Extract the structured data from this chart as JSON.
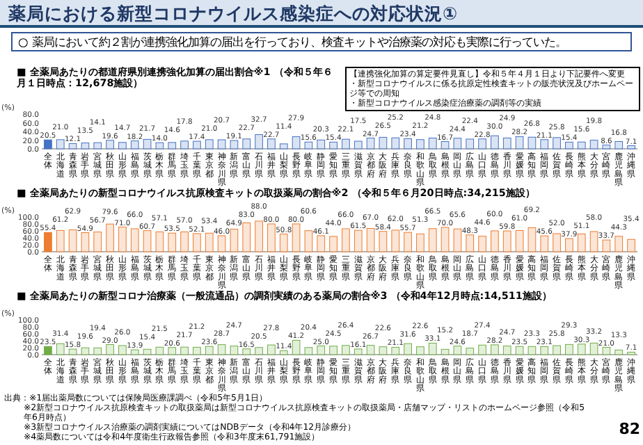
{
  "chart_data": [
    {
      "type": "other",
      "title": "薬局における新型コロナウイルス感染症への対応状況①",
      "subtitle": "○ 薬局において約２割が連携強化加算の届出を行っており、検査キットや治療薬の対応も実際に行っていた。",
      "annotations": [
        "出典：※1届出薬局数については保険局医療課調べ（令和5年5月1日）",
        "※2新型コロナウイルス抗原検査キットの取扱薬局は新型コロナウイルス抗原検査キットの取扱薬局・店舗マップ・リストのホームページ参照（令和5年6月時点）",
        "※3新型コロナウイルス治療薬の調剤実績についてはNDBデータ（令和4年12月診療分）",
        "※4薬局数については令和4年度衛生行政報告参照（令和3年度末61,791施設）",
        "82"
      ]
    },
    {
      "type": "bar",
      "title": "■ 全薬局あたりの都道府県別連携強化加算の届出割合※1 （令和５年６月１日時点：12,678施設）",
      "ylabel": "(%)",
      "annotations": [
        "【連携強化加算の算定要件見直し】令和５年４月１日より下記要件へ変更",
        "・新型コロナウイルスに係る抗原定性検査キットの販売状況及びホームページ等での周知",
        "・新型コロナウイルス感染症治療薬の調剤等の実績"
      ],
      "categories": [
        "全体",
        "北海道",
        "青森県",
        "岩手県",
        "宮城県",
        "秋田県",
        "山形県",
        "福島県",
        "茨城県",
        "栃木県",
        "群馬県",
        "埼玉県",
        "千葉県",
        "東京都",
        "神奈川県",
        "新潟県",
        "富山県",
        "石川県",
        "福井県",
        "山梨県",
        "長野県",
        "岐阜県",
        "静岡県",
        "愛知県",
        "三重県",
        "滋賀県",
        "京都府",
        "大阪府",
        "兵庫県",
        "奈良県",
        "和歌山県",
        "鳥取県",
        "島根県",
        "岡山県",
        "広島県",
        "山口県",
        "徳島県",
        "香川県",
        "愛媛県",
        "高知県",
        "福岡県",
        "佐賀県",
        "長崎県",
        "熊本県",
        "大分県",
        "宮崎県",
        "鹿児島県",
        "沖縄県"
      ],
      "values": [
        20.5,
        21.0,
        12.1,
        13.5,
        14.1,
        19.6,
        14.7,
        18.2,
        21.7,
        14.0,
        14.6,
        17.8,
        17.4,
        21.0,
        20.7,
        19.1,
        22.7,
        32.7,
        22.7,
        11.4,
        27.9,
        15.6,
        20.3,
        15.4,
        22.1,
        17.5,
        24.7,
        26.5,
        25.2,
        23.4,
        21.2,
        24.8,
        16.7,
        24.4,
        22.4,
        22.8,
        30.0,
        24.9,
        28.2,
        26.8,
        21.1,
        25.8,
        15.4,
        15.6,
        19.8,
        8.6,
        16.8,
        7.1
      ],
      "colors": [
        "#4472c4",
        "#dae3f3",
        "#dae3f3",
        "#dae3f3",
        "#dae3f3",
        "#dae3f3",
        "#dae3f3",
        "#dae3f3",
        "#dae3f3",
        "#dae3f3",
        "#dae3f3",
        "#dae3f3",
        "#dae3f3",
        "#dae3f3",
        "#dae3f3",
        "#dae3f3",
        "#dae3f3",
        "#dae3f3",
        "#dae3f3",
        "#dae3f3",
        "#dae3f3",
        "#dae3f3",
        "#dae3f3",
        "#dae3f3",
        "#dae3f3",
        "#dae3f3",
        "#dae3f3",
        "#dae3f3",
        "#dae3f3",
        "#dae3f3",
        "#dae3f3",
        "#dae3f3",
        "#dae3f3",
        "#dae3f3",
        "#dae3f3",
        "#dae3f3",
        "#dae3f3",
        "#dae3f3",
        "#dae3f3",
        "#dae3f3",
        "#dae3f3",
        "#dae3f3",
        "#dae3f3",
        "#dae3f3",
        "#dae3f3",
        "#dae3f3",
        "#dae3f3",
        "#dae3f3"
      ],
      "ylim": [
        0,
        80
      ],
      "yticks": [
        {
          "value": 0,
          "label": "0.0"
        },
        {
          "value": 20,
          "label": "20.0"
        },
        {
          "value": 40,
          "label": "40.0"
        },
        {
          "value": 60,
          "label": "60.0"
        },
        {
          "value": 80,
          "label": "80.0"
        }
      ],
      "value_labels": [
        "20.5",
        "21.0",
        "12.1",
        "13.5",
        "14.1",
        "19.6",
        "14.7",
        "18.2",
        "21.7",
        "14.0",
        "14.6",
        "17.8",
        "17.4",
        "21.0",
        "20.7",
        "19.1",
        "22.7",
        "32.7",
        "22.7",
        "11.4",
        "27.9",
        "15.6",
        "20.3",
        "15.4",
        "22.1",
        "17.5",
        "24.7",
        "26.5",
        "25.2",
        "23.4",
        "21.2",
        "24.8",
        "16.7",
        "24.4",
        "22.4",
        "22.8",
        "30.0",
        "24.9",
        "28.2",
        "26.8",
        "21.1",
        "25.8",
        "15.4",
        "15.6",
        "19.8",
        "8.6",
        "16.8",
        "7.1"
      ]
    },
    {
      "type": "bar",
      "title": "■ 全薬局あたりの新型コロナウイルス抗原検査キットの取扱薬局の割合※2 （令和５年６月20日時点:34,215施設）",
      "ylabel": "(%)",
      "categories": [
        "全体",
        "北海道",
        "青森県",
        "岩手県",
        "宮城県",
        "秋田県",
        "山形県",
        "福島県",
        "茨城県",
        "栃木県",
        "群馬県",
        "埼玉県",
        "千葉県",
        "東京都",
        "神奈川県",
        "新潟県",
        "富山県",
        "石川県",
        "福井県",
        "山梨県",
        "長野県",
        "岐阜県",
        "静岡県",
        "愛知県",
        "三重県",
        "滋賀県",
        "京都府",
        "大阪府",
        "兵庫県",
        "奈良県",
        "和歌山県",
        "鳥取県",
        "島根県",
        "岡山県",
        "広島県",
        "山口県",
        "徳島県",
        "香川県",
        "愛媛県",
        "高知県",
        "福岡県",
        "佐賀県",
        "長崎県",
        "熊本県",
        "大分県",
        "宮崎県",
        "鹿児島県",
        "沖縄県"
      ],
      "values": [
        55.4,
        61.2,
        62.9,
        54.9,
        56.7,
        79.6,
        71.0,
        66.0,
        60.7,
        57.1,
        53.5,
        57.0,
        52.1,
        53.4,
        46.0,
        64.9,
        83.0,
        88.0,
        80.0,
        50.8,
        80.0,
        60.6,
        46.1,
        44.0,
        66.0,
        61.5,
        67.0,
        58.4,
        62.0,
        55.7,
        51.3,
        66.5,
        70.0,
        65.6,
        48.3,
        44.6,
        60.0,
        59.8,
        61.0,
        69.2,
        45.6,
        52.0,
        37.9,
        51.1,
        58.0,
        33.7,
        44.3,
        35.4
      ],
      "colors": [
        "#ed7d31",
        "#fbe5d6",
        "#fbe5d6",
        "#fbe5d6",
        "#fbe5d6",
        "#fbe5d6",
        "#fbe5d6",
        "#fbe5d6",
        "#fbe5d6",
        "#fbe5d6",
        "#fbe5d6",
        "#fbe5d6",
        "#fbe5d6",
        "#fbe5d6",
        "#fbe5d6",
        "#fbe5d6",
        "#fbe5d6",
        "#fbe5d6",
        "#fbe5d6",
        "#fbe5d6",
        "#fbe5d6",
        "#fbe5d6",
        "#fbe5d6",
        "#fbe5d6",
        "#fbe5d6",
        "#fbe5d6",
        "#fbe5d6",
        "#fbe5d6",
        "#fbe5d6",
        "#fbe5d6",
        "#fbe5d6",
        "#fbe5d6",
        "#fbe5d6",
        "#fbe5d6",
        "#fbe5d6",
        "#fbe5d6",
        "#fbe5d6",
        "#fbe5d6",
        "#fbe5d6",
        "#fbe5d6",
        "#fbe5d6",
        "#fbe5d6",
        "#fbe5d6",
        "#fbe5d6",
        "#fbe5d6",
        "#fbe5d6",
        "#fbe5d6",
        "#fbe5d6"
      ],
      "ylim": [
        0,
        100
      ],
      "yticks": [
        {
          "value": 0,
          "label": "0.0"
        },
        {
          "value": 20,
          "label": "20.0"
        },
        {
          "value": 40,
          "label": "40.0"
        },
        {
          "value": 60,
          "label": "60.0"
        },
        {
          "value": 80,
          "label": "80.0"
        },
        {
          "value": 100,
          "label": "100.0"
        }
      ],
      "value_labels": [
        "55.4",
        "61.2",
        "62.9",
        "54.9",
        "56.7",
        "79.6",
        "71.0",
        "66.0",
        "60.7",
        "57.1",
        "53.5",
        "57.0",
        "52.1",
        "53.4",
        "46.0",
        "64.9",
        "83.0",
        "88.0",
        "80.0",
        "50.8",
        "80.0",
        "60.6",
        "46.1",
        "44.0",
        "66.0",
        "61.5",
        "67.0",
        "58.4",
        "62.0",
        "55.7",
        "51.3",
        "66.5",
        "70.0",
        "65.6",
        "48.3",
        "44.6",
        "60.0",
        "59.8",
        "61.0",
        "69.2",
        "45.6",
        "52.0",
        "37.9",
        "51.1",
        "58.0",
        "33.7",
        "44.3",
        "35.4"
      ]
    },
    {
      "type": "bar",
      "title": "■ 全薬局あたりの新型コロナ治療薬（一般流通品）の調剤実績のある薬局の割合※3 （令和4年12月時点:14,511施設）",
      "ylabel": "(%)",
      "categories": [
        "全体",
        "北海道",
        "青森県",
        "岩手県",
        "宮城県",
        "秋田県",
        "山形県",
        "福島県",
        "茨城県",
        "栃木県",
        "群馬県",
        "埼玉県",
        "千葉県",
        "東京都",
        "神奈川県",
        "新潟県",
        "富山県",
        "石川県",
        "福井県",
        "山梨県",
        "長野県",
        "岐阜県",
        "静岡県",
        "愛知県",
        "三重県",
        "滋賀県",
        "京都府",
        "大阪府",
        "兵庫県",
        "奈良県",
        "和歌山県",
        "鳥取県",
        "島根県",
        "岡山県",
        "広島県",
        "山口県",
        "徳島県",
        "香川県",
        "愛媛県",
        "高知県",
        "福岡県",
        "佐賀県",
        "長崎県",
        "熊本県",
        "大分県",
        "宮崎県",
        "鹿児島県",
        "沖縄県"
      ],
      "values": [
        23.5,
        31.4,
        15.8,
        19.6,
        19.4,
        29.0,
        26.0,
        13.9,
        15.4,
        21.5,
        20.6,
        21.7,
        21.2,
        23.6,
        28.7,
        24.7,
        16.5,
        20.5,
        27.8,
        11.4,
        41.2,
        20.4,
        25.0,
        24.5,
        26.4,
        16.1,
        26.7,
        22.6,
        21.1,
        31.6,
        22.6,
        33.1,
        15.2,
        24.6,
        18.7,
        27.4,
        28.2,
        24.7,
        23.5,
        23.3,
        23.1,
        25.8,
        29.3,
        30.3,
        33.2,
        21.0,
        13.3,
        7.1
      ],
      "colors": [
        "#70ad47",
        "#e2f0d9",
        "#e2f0d9",
        "#e2f0d9",
        "#e2f0d9",
        "#e2f0d9",
        "#e2f0d9",
        "#e2f0d9",
        "#e2f0d9",
        "#e2f0d9",
        "#e2f0d9",
        "#e2f0d9",
        "#e2f0d9",
        "#e2f0d9",
        "#e2f0d9",
        "#e2f0d9",
        "#e2f0d9",
        "#e2f0d9",
        "#e2f0d9",
        "#e2f0d9",
        "#e2f0d9",
        "#e2f0d9",
        "#e2f0d9",
        "#e2f0d9",
        "#e2f0d9",
        "#e2f0d9",
        "#e2f0d9",
        "#e2f0d9",
        "#e2f0d9",
        "#e2f0d9",
        "#e2f0d9",
        "#e2f0d9",
        "#e2f0d9",
        "#e2f0d9",
        "#e2f0d9",
        "#e2f0d9",
        "#e2f0d9",
        "#e2f0d9",
        "#e2f0d9",
        "#e2f0d9",
        "#e2f0d9",
        "#e2f0d9",
        "#e2f0d9",
        "#e2f0d9",
        "#e2f0d9",
        "#e2f0d9",
        "#e2f0d9",
        "#e2f0d9"
      ],
      "ylim": [
        0,
        100
      ],
      "yticks": [
        {
          "value": 0,
          "label": "0.0"
        },
        {
          "value": 20,
          "label": "20.0"
        },
        {
          "value": 40,
          "label": "40.0"
        },
        {
          "value": 60,
          "label": "60.0"
        },
        {
          "value": 80,
          "label": "80.0"
        },
        {
          "value": 100,
          "label": "100.0"
        }
      ],
      "value_labels": [
        "23.5",
        "31.4",
        "15.8",
        "19.6",
        "19.4",
        "29.0",
        "26.0",
        "13.9",
        "15.4",
        "21.5",
        "20.6",
        "21.7",
        "21.2",
        "23.6",
        "28.7",
        "24.7",
        "16.5",
        "20.5",
        "27.8",
        "11.4",
        "41.2",
        "20.4",
        "25.0",
        "24.5",
        "26.4",
        "16.1",
        "26.7",
        "22.6",
        "21.1",
        "31.6",
        "22.6",
        "33.1",
        "15.2",
        "24.6",
        "18.7",
        "27.4",
        "28.2",
        "24.7",
        "23.5",
        "23.3",
        "23.1",
        "25.8",
        "29.3",
        "30.3",
        "33.2",
        "21.0",
        "13.3",
        "7.1"
      ]
    }
  ]
}
